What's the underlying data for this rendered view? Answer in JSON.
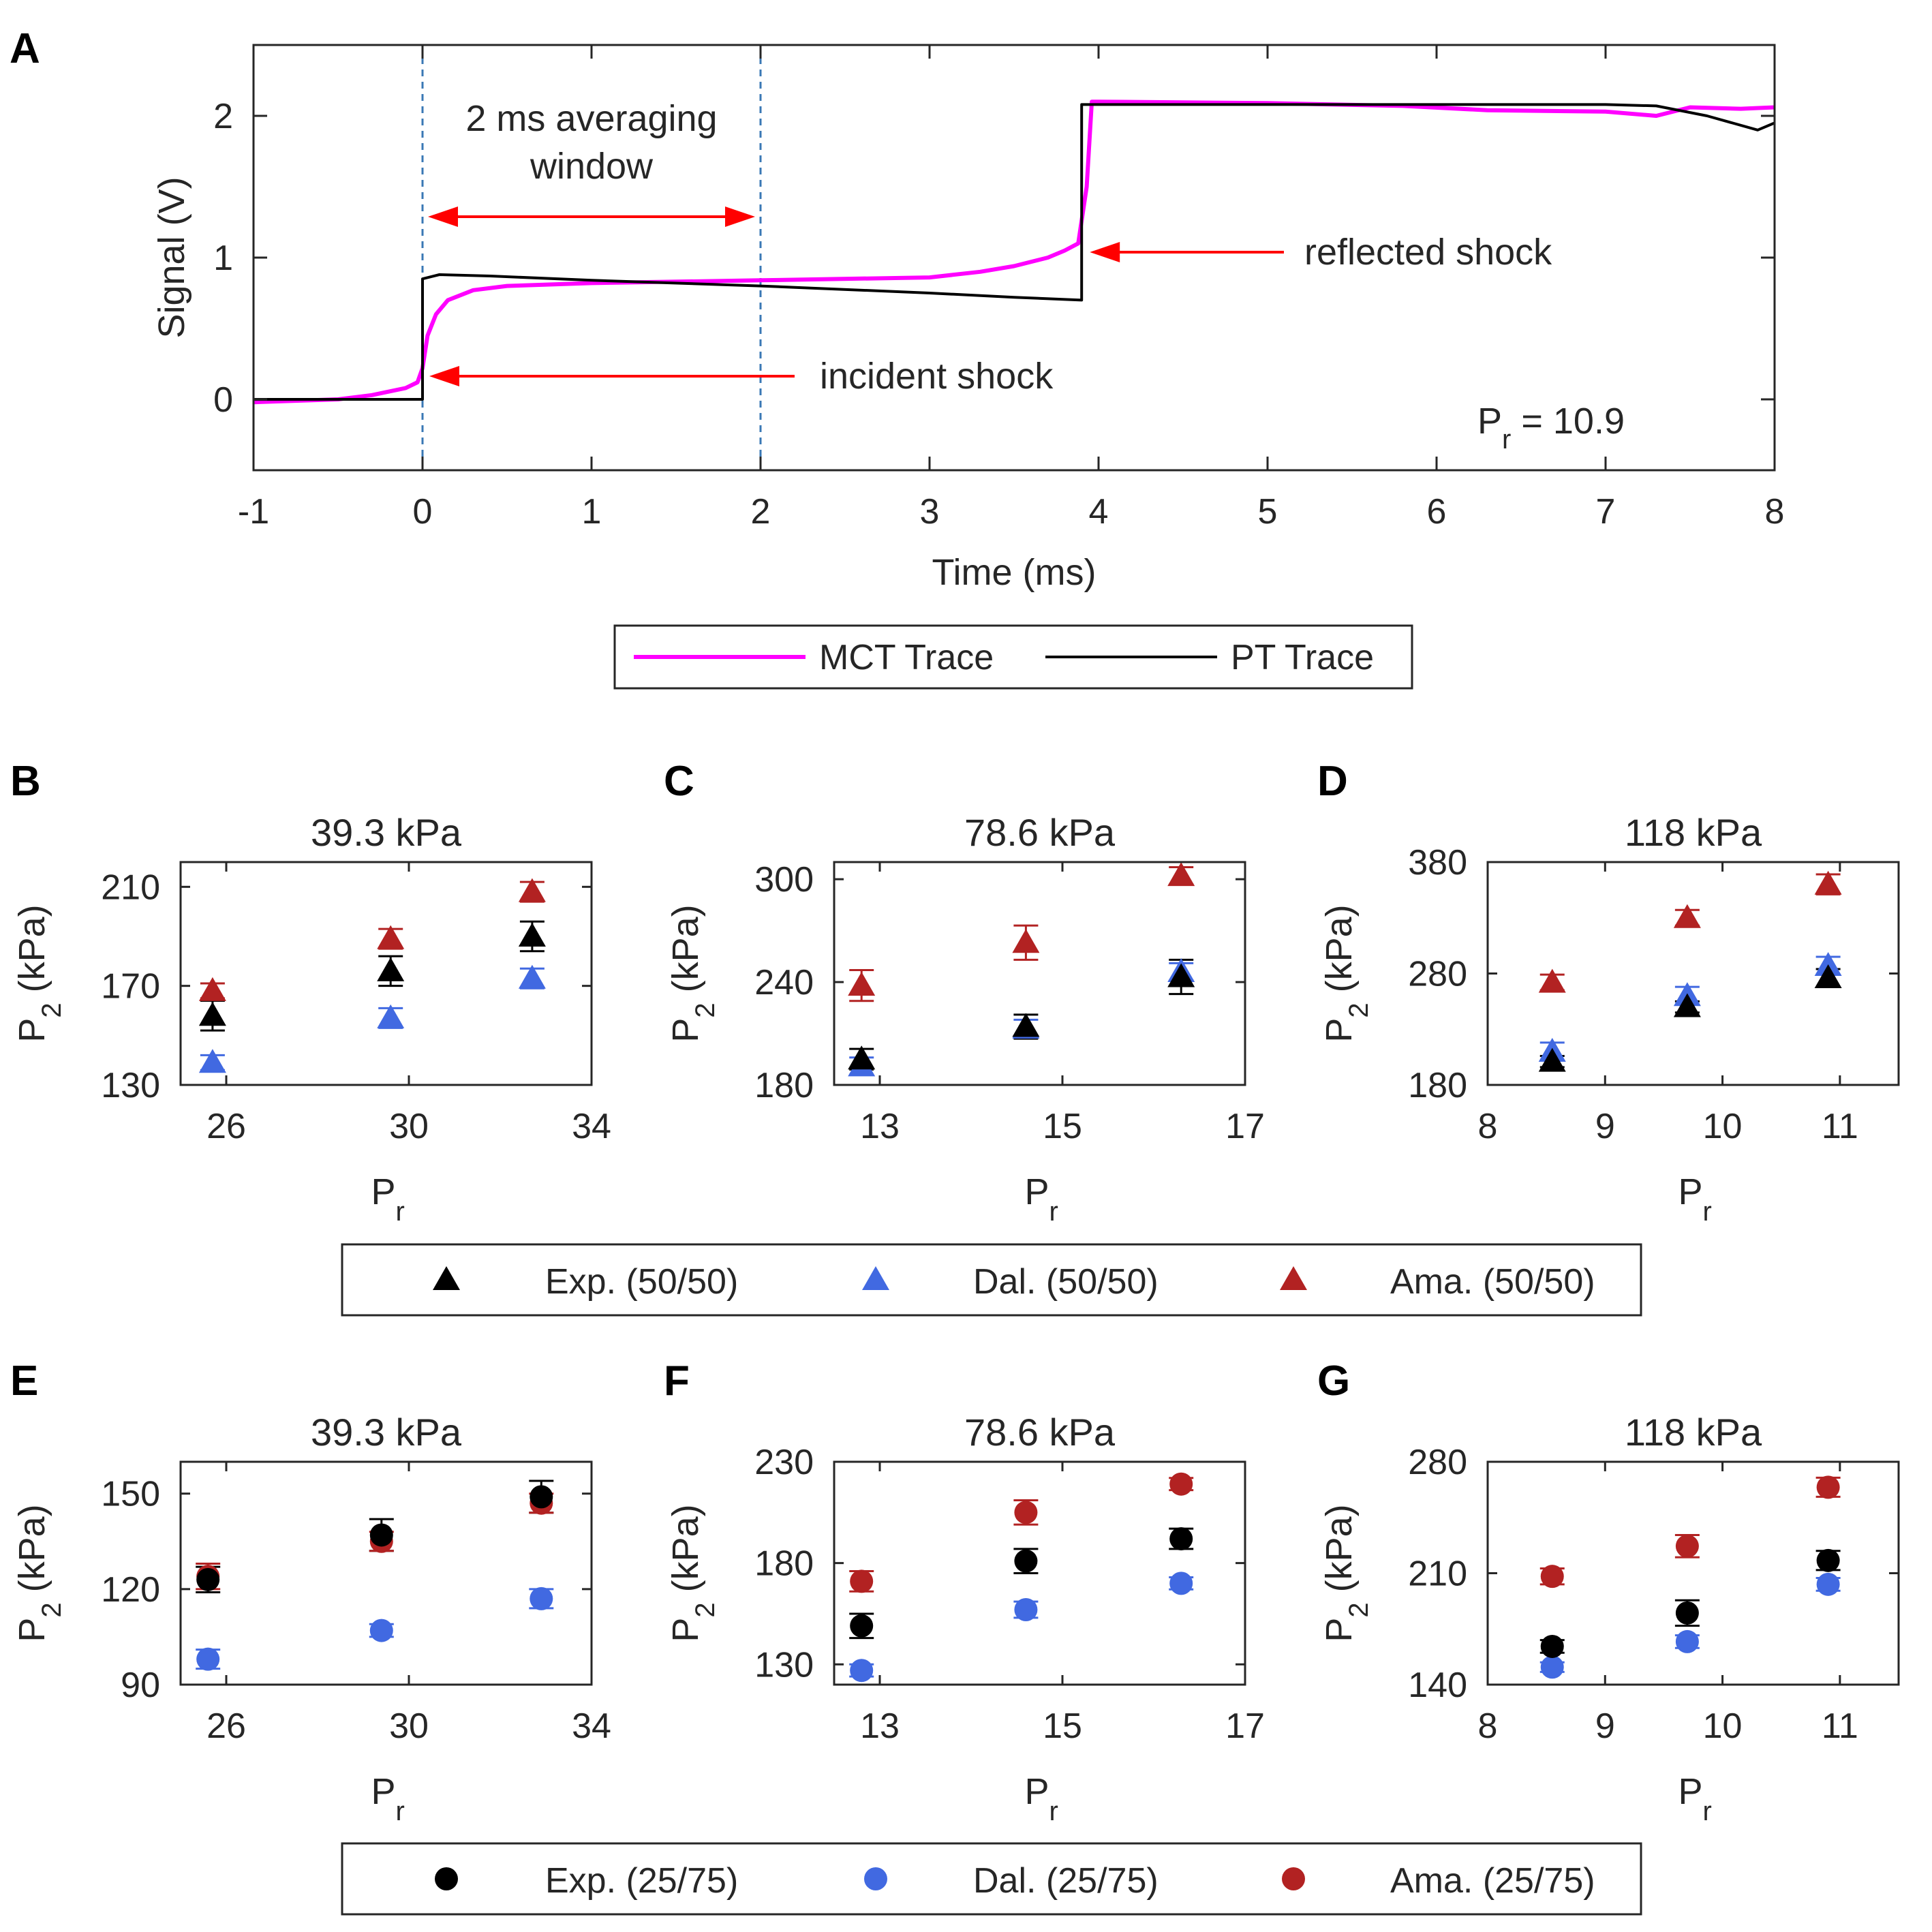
{
  "chart_data": [
    {
      "id": "A",
      "type": "line",
      "panel_label": "A",
      "xlabel": "Time (ms)",
      "ylabel": "Signal (V)",
      "xlim": [
        -1,
        8
      ],
      "ylim": [
        -0.5,
        2.5
      ],
      "xticks": [
        -1,
        0,
        1,
        2,
        3,
        4,
        5,
        6,
        7,
        8
      ],
      "yticks": [
        0,
        1,
        2
      ],
      "series": [
        {
          "name": "MCT Trace",
          "color": "#ff00ff",
          "x": [
            -1,
            -0.5,
            -0.3,
            -0.1,
            -0.03,
            0,
            0.03,
            0.08,
            0.15,
            0.3,
            0.5,
            1,
            2,
            3,
            3.3,
            3.5,
            3.7,
            3.8,
            3.88,
            3.93,
            3.96,
            4,
            5,
            5.8,
            6.3,
            7,
            7.3,
            7.5,
            7.8,
            8
          ],
          "y": [
            -0.02,
            0,
            0.03,
            0.08,
            0.12,
            0.22,
            0.45,
            0.6,
            0.7,
            0.77,
            0.8,
            0.82,
            0.84,
            0.86,
            0.9,
            0.94,
            1.0,
            1.05,
            1.1,
            1.5,
            2.1,
            2.1,
            2.09,
            2.07,
            2.04,
            2.03,
            2.0,
            2.06,
            2.05,
            2.06
          ]
        },
        {
          "name": "PT Trace",
          "color": "#000000",
          "x": [
            -1,
            0,
            0,
            0.1,
            0.4,
            1,
            2,
            3,
            3.5,
            3.9,
            3.9,
            4,
            5,
            6,
            7,
            7.3,
            7.6,
            7.9,
            8
          ],
          "y": [
            0,
            0,
            0.85,
            0.88,
            0.87,
            0.84,
            0.8,
            0.75,
            0.72,
            0.7,
            2.08,
            2.08,
            2.08,
            2.08,
            2.08,
            2.07,
            2.0,
            1.9,
            1.95
          ]
        }
      ],
      "annotations": {
        "window_text_line1": "2 ms averaging",
        "window_text_line2": "window",
        "incident": "incident shock",
        "reflected": "reflected shock",
        "pr_prefix": "P",
        "pr_sub": "r",
        "pr_value": " = 10.9",
        "window_start": 0,
        "window_end": 2
      },
      "legend": [
        "MCT Trace",
        "PT Trace"
      ]
    },
    {
      "id": "B",
      "panel_label": "B",
      "type": "scatter",
      "title": "39.3 kPa",
      "xlim": [
        25,
        34
      ],
      "ylim": [
        130,
        220
      ],
      "xticks": [
        26,
        30,
        34
      ],
      "yticks": [
        130,
        170,
        210
      ],
      "marker": "triangle",
      "series": [
        {
          "name": "Exp. (50/50)",
          "color": "#000000",
          "x": [
            25.7,
            29.6,
            32.7
          ],
          "y": [
            158,
            176,
            190
          ],
          "err": [
            6,
            6,
            6
          ]
        },
        {
          "name": "Dal. (50/50)",
          "color": "#4169e1",
          "x": [
            25.7,
            29.6,
            32.7
          ],
          "y": [
            139,
            157,
            173
          ],
          "err": [
            3,
            4,
            4
          ]
        },
        {
          "name": "Ama. (50/50)",
          "color": "#b22222",
          "x": [
            25.7,
            29.6,
            32.7
          ],
          "y": [
            168,
            189,
            208
          ],
          "err": [
            3,
            4,
            4
          ]
        }
      ]
    },
    {
      "id": "C",
      "panel_label": "C",
      "type": "scatter",
      "title": "78.6 kPa",
      "xlim": [
        12.5,
        17
      ],
      "ylim": [
        180,
        310
      ],
      "xticks": [
        13,
        15,
        17
      ],
      "yticks": [
        180,
        240,
        300
      ],
      "marker": "triangle",
      "series": [
        {
          "name": "Exp. (50/50)",
          "color": "#000000",
          "x": [
            12.8,
            14.6,
            16.3
          ],
          "y": [
            195,
            214,
            243
          ],
          "err": [
            6,
            7,
            10
          ]
        },
        {
          "name": "Dal. (50/50)",
          "color": "#4169e1",
          "x": [
            12.8,
            14.6,
            16.3
          ],
          "y": [
            191,
            213,
            246
          ],
          "err": [
            5,
            5,
            5
          ]
        },
        {
          "name": "Ama. (50/50)",
          "color": "#b22222",
          "x": [
            12.8,
            14.6,
            16.3
          ],
          "y": [
            238,
            263,
            302
          ],
          "err": [
            9,
            10,
            5
          ]
        }
      ]
    },
    {
      "id": "D",
      "panel_label": "D",
      "type": "scatter",
      "title": "118 kPa",
      "xlim": [
        8,
        11.5
      ],
      "ylim": [
        180,
        380
      ],
      "xticks": [
        8,
        9,
        10,
        11
      ],
      "yticks": [
        180,
        280,
        380
      ],
      "marker": "triangle",
      "series": [
        {
          "name": "Exp. (50/50)",
          "color": "#000000",
          "x": [
            8.55,
            9.7,
            10.9
          ],
          "y": [
            201,
            250,
            276
          ],
          "err": [
            5,
            5,
            8
          ]
        },
        {
          "name": "Dal. (50/50)",
          "color": "#4169e1",
          "x": [
            8.55,
            9.7,
            10.9
          ],
          "y": [
            210,
            260,
            287
          ],
          "err": [
            8,
            8,
            8
          ]
        },
        {
          "name": "Ama. (50/50)",
          "color": "#b22222",
          "x": [
            8.55,
            9.7,
            10.9
          ],
          "y": [
            272,
            330,
            360
          ],
          "err": [
            7,
            7,
            9
          ]
        }
      ]
    },
    {
      "id": "E",
      "panel_label": "E",
      "type": "scatter",
      "title": "39.3 kPa",
      "xlim": [
        25,
        34
      ],
      "ylim": [
        90,
        160
      ],
      "xticks": [
        26,
        30,
        34
      ],
      "yticks": [
        90,
        120,
        150
      ],
      "marker": "circle",
      "series": [
        {
          "name": "Exp. (25/75)",
          "color": "#000000",
          "x": [
            25.6,
            29.4,
            32.9
          ],
          "y": [
            123,
            137,
            149
          ],
          "err": [
            4,
            5,
            5
          ]
        },
        {
          "name": "Dal. (25/75)",
          "color": "#4169e1",
          "x": [
            25.6,
            29.4,
            32.9
          ],
          "y": [
            98,
            107,
            117
          ],
          "err": [
            3,
            2,
            3
          ]
        },
        {
          "name": "Ama. (25/75)",
          "color": "#b22222",
          "x": [
            25.6,
            29.4,
            32.9
          ],
          "y": [
            124,
            135,
            147
          ],
          "err": [
            4,
            3,
            3
          ]
        }
      ]
    },
    {
      "id": "F",
      "panel_label": "F",
      "type": "scatter",
      "title": "78.6 kPa",
      "xlim": [
        12.5,
        17
      ],
      "ylim": [
        120,
        230
      ],
      "xticks": [
        13,
        15,
        17
      ],
      "yticks": [
        130,
        180,
        230
      ],
      "marker": "circle",
      "series": [
        {
          "name": "Exp. (25/75)",
          "color": "#000000",
          "x": [
            12.8,
            14.6,
            16.3
          ],
          "y": [
            149,
            181,
            192
          ],
          "err": [
            6,
            6,
            5
          ]
        },
        {
          "name": "Dal. (25/75)",
          "color": "#4169e1",
          "x": [
            12.8,
            14.6,
            16.3
          ],
          "y": [
            127,
            157,
            170
          ],
          "err": [
            3,
            4,
            3
          ]
        },
        {
          "name": "Ama. (25/75)",
          "color": "#b22222",
          "x": [
            12.8,
            14.6,
            16.3
          ],
          "y": [
            171,
            205,
            219
          ],
          "err": [
            5,
            6,
            3
          ]
        }
      ]
    },
    {
      "id": "G",
      "panel_label": "G",
      "type": "scatter",
      "title": "118 kPa",
      "xlim": [
        8,
        11.5
      ],
      "ylim": [
        140,
        280
      ],
      "xticks": [
        8,
        9,
        10,
        11
      ],
      "yticks": [
        140,
        210,
        280
      ],
      "marker": "circle",
      "series": [
        {
          "name": "Exp. (25/75)",
          "color": "#000000",
          "x": [
            8.55,
            9.7,
            10.9
          ],
          "y": [
            164,
            185,
            218
          ],
          "err": [
            4,
            8,
            6
          ]
        },
        {
          "name": "Dal. (25/75)",
          "color": "#4169e1",
          "x": [
            8.55,
            9.7,
            10.9
          ],
          "y": [
            151,
            167,
            203
          ],
          "err": [
            3,
            4,
            4
          ]
        },
        {
          "name": "Ama. (25/75)",
          "color": "#b22222",
          "x": [
            8.55,
            9.7,
            10.9
          ],
          "y": [
            208,
            227,
            264
          ],
          "err": [
            5,
            7,
            6
          ]
        }
      ]
    }
  ],
  "scatter_axis_labels": {
    "y_prefix": "P",
    "y_sub": "2",
    "y_suffix": " (kPa)",
    "x_prefix": "P",
    "x_sub": "r"
  },
  "legend_triangle": [
    "Exp. (50/50)",
    "Dal. (50/50)",
    "Ama. (50/50)"
  ],
  "legend_circle": [
    "Exp. (25/75)",
    "Dal. (25/75)",
    "Ama. (25/75)"
  ],
  "legend_colors": [
    "#000000",
    "#4169e1",
    "#b22222"
  ]
}
